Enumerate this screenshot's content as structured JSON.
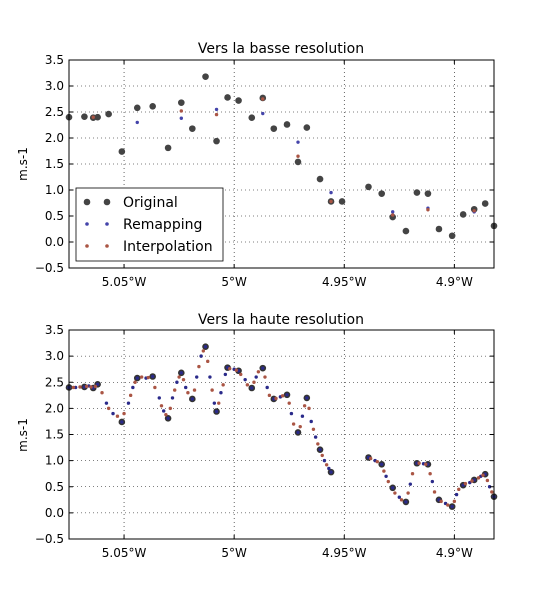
{
  "chart_data": [
    {
      "type": "scatter",
      "title": "Vers la basse resolution",
      "ylabel": "m.s-1",
      "xlabel": "",
      "xlim": [
        -5.075,
        -4.882
      ],
      "ylim": [
        -0.5,
        3.5
      ],
      "xticks": [
        -5.05,
        -5.0,
        -4.95,
        -4.9
      ],
      "xtick_labels": [
        "5.05°W",
        "5°W",
        "4.95°W",
        "4.9°W"
      ],
      "yticks": [
        -0.5,
        0.0,
        0.5,
        1.0,
        1.5,
        2.0,
        2.5,
        3.0,
        3.5
      ],
      "ytick_labels": [
        "−0.5",
        "0.0",
        "0.5",
        "1.0",
        "1.5",
        "2.0",
        "2.5",
        "3.0",
        "3.5"
      ],
      "grid": true,
      "legend_position": "lower-left",
      "series": [
        {
          "name": "Original",
          "color": "#444444",
          "marker": "large-dot",
          "points": [
            [
              -5.075,
              2.4
            ],
            [
              -5.068,
              2.41
            ],
            [
              -5.064,
              2.39
            ],
            [
              -5.062,
              2.4
            ],
            [
              -5.057,
              2.46
            ],
            [
              -5.051,
              1.74
            ],
            [
              -5.044,
              2.58
            ],
            [
              -5.037,
              2.61
            ],
            [
              -5.03,
              1.81
            ],
            [
              -5.024,
              2.68
            ],
            [
              -5.019,
              2.18
            ],
            [
              -5.013,
              3.18
            ],
            [
              -5.008,
              1.94
            ],
            [
              -5.003,
              2.78
            ],
            [
              -4.998,
              2.72
            ],
            [
              -4.992,
              2.39
            ],
            [
              -4.987,
              2.77
            ],
            [
              -4.982,
              2.18
            ],
            [
              -4.976,
              2.26
            ],
            [
              -4.971,
              1.54
            ],
            [
              -4.967,
              2.2
            ],
            [
              -4.961,
              1.21
            ],
            [
              -4.956,
              0.78
            ],
            [
              -4.951,
              0.78
            ],
            [
              -4.939,
              1.06
            ],
            [
              -4.933,
              0.93
            ],
            [
              -4.928,
              0.48
            ],
            [
              -4.922,
              0.21
            ],
            [
              -4.917,
              0.95
            ],
            [
              -4.912,
              0.93
            ],
            [
              -4.907,
              0.25
            ],
            [
              -4.901,
              0.12
            ],
            [
              -4.896,
              0.53
            ],
            [
              -4.891,
              0.63
            ],
            [
              -4.886,
              0.74
            ],
            [
              -4.882,
              0.31
            ]
          ]
        },
        {
          "name": "Remapping",
          "color": "#4444aa",
          "marker": "small-dot",
          "points": [
            [
              -5.044,
              2.3
            ],
            [
              -5.024,
              2.38
            ],
            [
              -5.008,
              2.55
            ],
            [
              -4.987,
              2.47
            ],
            [
              -4.971,
              1.92
            ],
            [
              -4.956,
              0.95
            ],
            [
              -4.928,
              0.58
            ],
            [
              -4.912,
              0.65
            ],
            [
              -4.891,
              0.58
            ]
          ]
        },
        {
          "name": "Interpolation",
          "color": "#aa5544",
          "marker": "small-dot",
          "points": [
            [
              -5.064,
              2.4
            ],
            [
              -5.024,
              2.52
            ],
            [
              -5.008,
              2.45
            ],
            [
              -4.987,
              2.75
            ],
            [
              -4.971,
              1.65
            ],
            [
              -4.956,
              0.78
            ],
            [
              -4.928,
              0.52
            ],
            [
              -4.912,
              0.62
            ],
            [
              -4.891,
              0.6
            ]
          ]
        }
      ]
    },
    {
      "type": "scatter",
      "title": "Vers la haute resolution",
      "ylabel": "m.s-1",
      "xlabel": "",
      "xlim": [
        -5.075,
        -4.882
      ],
      "ylim": [
        -0.5,
        3.5
      ],
      "xticks": [
        -5.05,
        -5.0,
        -4.95,
        -4.9
      ],
      "xtick_labels": [
        "5.05°W",
        "5°W",
        "4.95°W",
        "4.9°W"
      ],
      "yticks": [
        -0.5,
        0.0,
        0.5,
        1.0,
        1.5,
        2.0,
        2.5,
        3.0,
        3.5
      ],
      "ytick_labels": [
        "−0.5",
        "0.0",
        "0.5",
        "1.0",
        "1.5",
        "2.0",
        "2.5",
        "3.0",
        "3.5"
      ],
      "grid": true,
      "series": [
        {
          "name": "Original",
          "color": "#333333",
          "marker": "large-dot",
          "points": [
            [
              -5.075,
              2.4
            ],
            [
              -5.068,
              2.41
            ],
            [
              -5.064,
              2.39
            ],
            [
              -5.062,
              2.46
            ],
            [
              -5.051,
              1.74
            ],
            [
              -5.044,
              2.58
            ],
            [
              -5.037,
              2.61
            ],
            [
              -5.03,
              1.81
            ],
            [
              -5.024,
              2.68
            ],
            [
              -5.019,
              2.18
            ],
            [
              -5.013,
              3.18
            ],
            [
              -5.008,
              1.94
            ],
            [
              -5.003,
              2.78
            ],
            [
              -4.998,
              2.72
            ],
            [
              -4.992,
              2.39
            ],
            [
              -4.987,
              2.77
            ],
            [
              -4.982,
              2.18
            ],
            [
              -4.976,
              2.26
            ],
            [
              -4.971,
              1.54
            ],
            [
              -4.967,
              2.2
            ],
            [
              -4.961,
              1.21
            ],
            [
              -4.956,
              0.78
            ],
            [
              -4.939,
              1.06
            ],
            [
              -4.933,
              0.93
            ],
            [
              -4.928,
              0.48
            ],
            [
              -4.922,
              0.21
            ],
            [
              -4.917,
              0.95
            ],
            [
              -4.912,
              0.93
            ],
            [
              -4.907,
              0.25
            ],
            [
              -4.901,
              0.12
            ],
            [
              -4.896,
              0.53
            ],
            [
              -4.891,
              0.63
            ],
            [
              -4.886,
              0.74
            ],
            [
              -4.882,
              0.31
            ]
          ]
        },
        {
          "name": "Remapping",
          "color": "#2a2a8a",
          "marker": "small-dot",
          "points": [
            [
              -5.075,
              2.4
            ],
            [
              -5.072,
              2.4
            ],
            [
              -5.068,
              2.41
            ],
            [
              -5.066,
              2.43
            ],
            [
              -5.064,
              2.39
            ],
            [
              -5.062,
              2.46
            ],
            [
              -5.058,
              2.1
            ],
            [
              -5.055,
              1.9
            ],
            [
              -5.051,
              1.74
            ],
            [
              -5.048,
              2.1
            ],
            [
              -5.046,
              2.4
            ],
            [
              -5.044,
              2.58
            ],
            [
              -5.04,
              2.58
            ],
            [
              -5.037,
              2.61
            ],
            [
              -5.034,
              2.2
            ],
            [
              -5.032,
              1.95
            ],
            [
              -5.03,
              1.81
            ],
            [
              -5.028,
              2.2
            ],
            [
              -5.026,
              2.5
            ],
            [
              -5.024,
              2.68
            ],
            [
              -5.022,
              2.4
            ],
            [
              -5.019,
              2.18
            ],
            [
              -5.017,
              2.6
            ],
            [
              -5.015,
              3.0
            ],
            [
              -5.013,
              3.18
            ],
            [
              -5.011,
              2.6
            ],
            [
              -5.009,
              2.1
            ],
            [
              -5.008,
              1.94
            ],
            [
              -5.006,
              2.3
            ],
            [
              -5.004,
              2.65
            ],
            [
              -5.003,
              2.78
            ],
            [
              -5.0,
              2.75
            ],
            [
              -4.998,
              2.72
            ],
            [
              -4.995,
              2.55
            ],
            [
              -4.992,
              2.39
            ],
            [
              -4.99,
              2.6
            ],
            [
              -4.987,
              2.77
            ],
            [
              -4.985,
              2.4
            ],
            [
              -4.982,
              2.18
            ],
            [
              -4.979,
              2.22
            ],
            [
              -4.976,
              2.26
            ],
            [
              -4.974,
              1.9
            ],
            [
              -4.971,
              1.54
            ],
            [
              -4.969,
              1.85
            ],
            [
              -4.967,
              2.2
            ],
            [
              -4.965,
              1.75
            ],
            [
              -4.963,
              1.45
            ],
            [
              -4.961,
              1.21
            ],
            [
              -4.959,
              1.0
            ],
            [
              -4.957,
              0.85
            ],
            [
              -4.956,
              0.78
            ],
            [
              -4.939,
              1.06
            ],
            [
              -4.936,
              1.0
            ],
            [
              -4.933,
              0.93
            ],
            [
              -4.931,
              0.7
            ],
            [
              -4.928,
              0.48
            ],
            [
              -4.925,
              0.3
            ],
            [
              -4.922,
              0.21
            ],
            [
              -4.92,
              0.55
            ],
            [
              -4.917,
              0.95
            ],
            [
              -4.914,
              0.94
            ],
            [
              -4.912,
              0.93
            ],
            [
              -4.91,
              0.6
            ],
            [
              -4.907,
              0.25
            ],
            [
              -4.904,
              0.18
            ],
            [
              -4.901,
              0.12
            ],
            [
              -4.899,
              0.35
            ],
            [
              -4.896,
              0.53
            ],
            [
              -4.893,
              0.58
            ],
            [
              -4.891,
              0.63
            ],
            [
              -4.888,
              0.7
            ],
            [
              -4.886,
              0.74
            ],
            [
              -4.884,
              0.5
            ],
            [
              -4.882,
              0.31
            ]
          ]
        },
        {
          "name": "Interpolation",
          "color": "#aa5544",
          "marker": "small-dot",
          "points": [
            [
              -5.073,
              2.4
            ],
            [
              -5.07,
              2.41
            ],
            [
              -5.067,
              2.42
            ],
            [
              -5.065,
              2.41
            ],
            [
              -5.063,
              2.42
            ],
            [
              -5.06,
              2.3
            ],
            [
              -5.057,
              2.0
            ],
            [
              -5.053,
              1.85
            ],
            [
              -5.05,
              1.9
            ],
            [
              -5.047,
              2.25
            ],
            [
              -5.045,
              2.5
            ],
            [
              -5.042,
              2.6
            ],
            [
              -5.039,
              2.59
            ],
            [
              -5.036,
              2.4
            ],
            [
              -5.033,
              2.05
            ],
            [
              -5.031,
              1.88
            ],
            [
              -5.029,
              2.0
            ],
            [
              -5.027,
              2.35
            ],
            [
              -5.025,
              2.6
            ],
            [
              -5.023,
              2.55
            ],
            [
              -5.021,
              2.3
            ],
            [
              -5.018,
              2.35
            ],
            [
              -5.016,
              2.8
            ],
            [
              -5.014,
              3.1
            ],
            [
              -5.012,
              2.9
            ],
            [
              -5.01,
              2.35
            ],
            [
              -5.007,
              2.1
            ],
            [
              -5.005,
              2.45
            ],
            [
              -5.002,
              2.76
            ],
            [
              -4.999,
              2.73
            ],
            [
              -4.997,
              2.65
            ],
            [
              -4.994,
              2.45
            ],
            [
              -4.991,
              2.5
            ],
            [
              -4.989,
              2.7
            ],
            [
              -4.986,
              2.6
            ],
            [
              -4.984,
              2.25
            ],
            [
              -4.981,
              2.19
            ],
            [
              -4.978,
              2.24
            ],
            [
              -4.975,
              2.1
            ],
            [
              -4.973,
              1.7
            ],
            [
              -4.97,
              1.65
            ],
            [
              -4.968,
              2.05
            ],
            [
              -4.966,
              2.0
            ],
            [
              -4.964,
              1.6
            ],
            [
              -4.962,
              1.32
            ],
            [
              -4.96,
              1.1
            ],
            [
              -4.958,
              0.92
            ],
            [
              -4.938,
              1.04
            ],
            [
              -4.935,
              0.98
            ],
            [
              -4.932,
              0.8
            ],
            [
              -4.93,
              0.6
            ],
            [
              -4.927,
              0.38
            ],
            [
              -4.924,
              0.25
            ],
            [
              -4.921,
              0.38
            ],
            [
              -4.919,
              0.75
            ],
            [
              -4.916,
              0.95
            ],
            [
              -4.913,
              0.93
            ],
            [
              -4.911,
              0.75
            ],
            [
              -4.909,
              0.4
            ],
            [
              -4.906,
              0.22
            ],
            [
              -4.903,
              0.15
            ],
            [
              -4.9,
              0.22
            ],
            [
              -4.898,
              0.45
            ],
            [
              -4.895,
              0.56
            ],
            [
              -4.892,
              0.61
            ],
            [
              -4.889,
              0.67
            ],
            [
              -4.887,
              0.72
            ],
            [
              -4.885,
              0.62
            ],
            [
              -4.883,
              0.4
            ]
          ]
        }
      ]
    }
  ]
}
